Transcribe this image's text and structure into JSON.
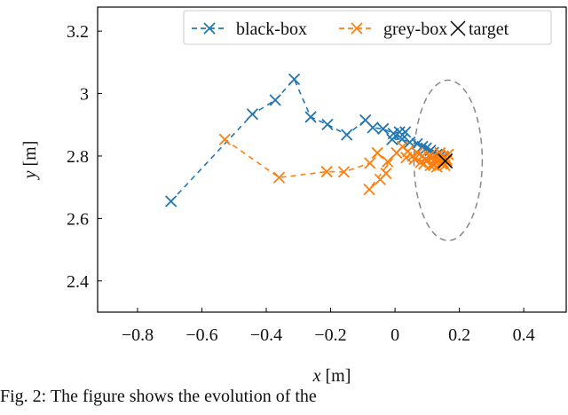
{
  "chart_data": {
    "type": "scatter",
    "title": "",
    "xlabel_var": "x",
    "xlabel_unit": "[m]",
    "ylabel_var": "y",
    "ylabel_unit": "[m]",
    "xlim": [
      -0.924,
      0.532
    ],
    "ylim": [
      2.3,
      3.277
    ],
    "xticks": [
      -0.8,
      -0.6,
      -0.4,
      -0.2,
      0,
      0.2,
      0.4
    ],
    "xtick_labels": [
      "−0.8",
      "−0.6",
      "−0.4",
      "−0.2",
      "0",
      "0.2",
      "0.4"
    ],
    "yticks": [
      2.4,
      2.6,
      2.8,
      3.0,
      3.2
    ],
    "ytick_labels": [
      "2.4",
      "2.6",
      "2.8",
      "3",
      "3.2"
    ],
    "grid": false,
    "legend_position": "top-right",
    "series": [
      {
        "name": "black-box",
        "color": "#1f77b4",
        "marker": "x",
        "line": "dashed",
        "x": [
          -0.696,
          -0.443,
          -0.372,
          -0.313,
          -0.262,
          -0.21,
          -0.15,
          -0.092,
          -0.069,
          -0.037,
          -0.005,
          0.014,
          0.032,
          -0.009,
          0.022,
          0.046,
          0.069,
          0.085,
          0.097,
          0.11,
          0.119,
          0.13,
          0.14,
          0.15
        ],
        "y": [
          2.655,
          2.934,
          2.979,
          3.046,
          2.925,
          2.901,
          2.868,
          2.915,
          2.891,
          2.887,
          2.872,
          2.877,
          2.877,
          2.853,
          2.854,
          2.844,
          2.839,
          2.83,
          2.825,
          2.818,
          2.811,
          2.805,
          2.8,
          2.795
        ]
      },
      {
        "name": "grey-box",
        "color": "#ff7f0e",
        "marker": "x",
        "line": "dashed",
        "x": [
          -0.529,
          -0.36,
          -0.212,
          -0.159,
          -0.078,
          -0.055,
          -0.023,
          -0.028,
          -0.046,
          -0.08,
          0.005,
          0.023,
          0.04,
          0.055,
          0.035,
          0.07,
          0.06,
          0.085,
          0.1,
          0.09,
          0.115,
          0.125,
          0.11,
          0.135,
          0.145,
          0.15,
          0.16,
          0.165,
          0.13,
          0.12,
          0.105,
          0.14,
          0.155,
          0.08,
          0.095,
          0.125,
          0.145,
          0.16,
          0.15
        ],
        "y": [
          2.853,
          2.731,
          2.75,
          2.749,
          2.777,
          2.81,
          2.782,
          2.744,
          2.725,
          2.693,
          2.81,
          2.83,
          2.815,
          2.8,
          2.795,
          2.81,
          2.79,
          2.8,
          2.785,
          2.775,
          2.795,
          2.78,
          2.77,
          2.79,
          2.775,
          2.8,
          2.785,
          2.805,
          2.765,
          2.77,
          2.8,
          2.81,
          2.77,
          2.78,
          2.79,
          2.79,
          2.795,
          2.79,
          2.78
        ]
      }
    ],
    "target": {
      "name": "target",
      "x": 0.156,
      "y": 2.784,
      "color": "#000000"
    },
    "ellipse": {
      "cx": 0.165,
      "cy": 2.786,
      "rx": 0.106,
      "ry": 0.257,
      "color": "#888888",
      "line": "dashed"
    }
  },
  "caption": "Fig. 2: The figure shows the evolution of the"
}
